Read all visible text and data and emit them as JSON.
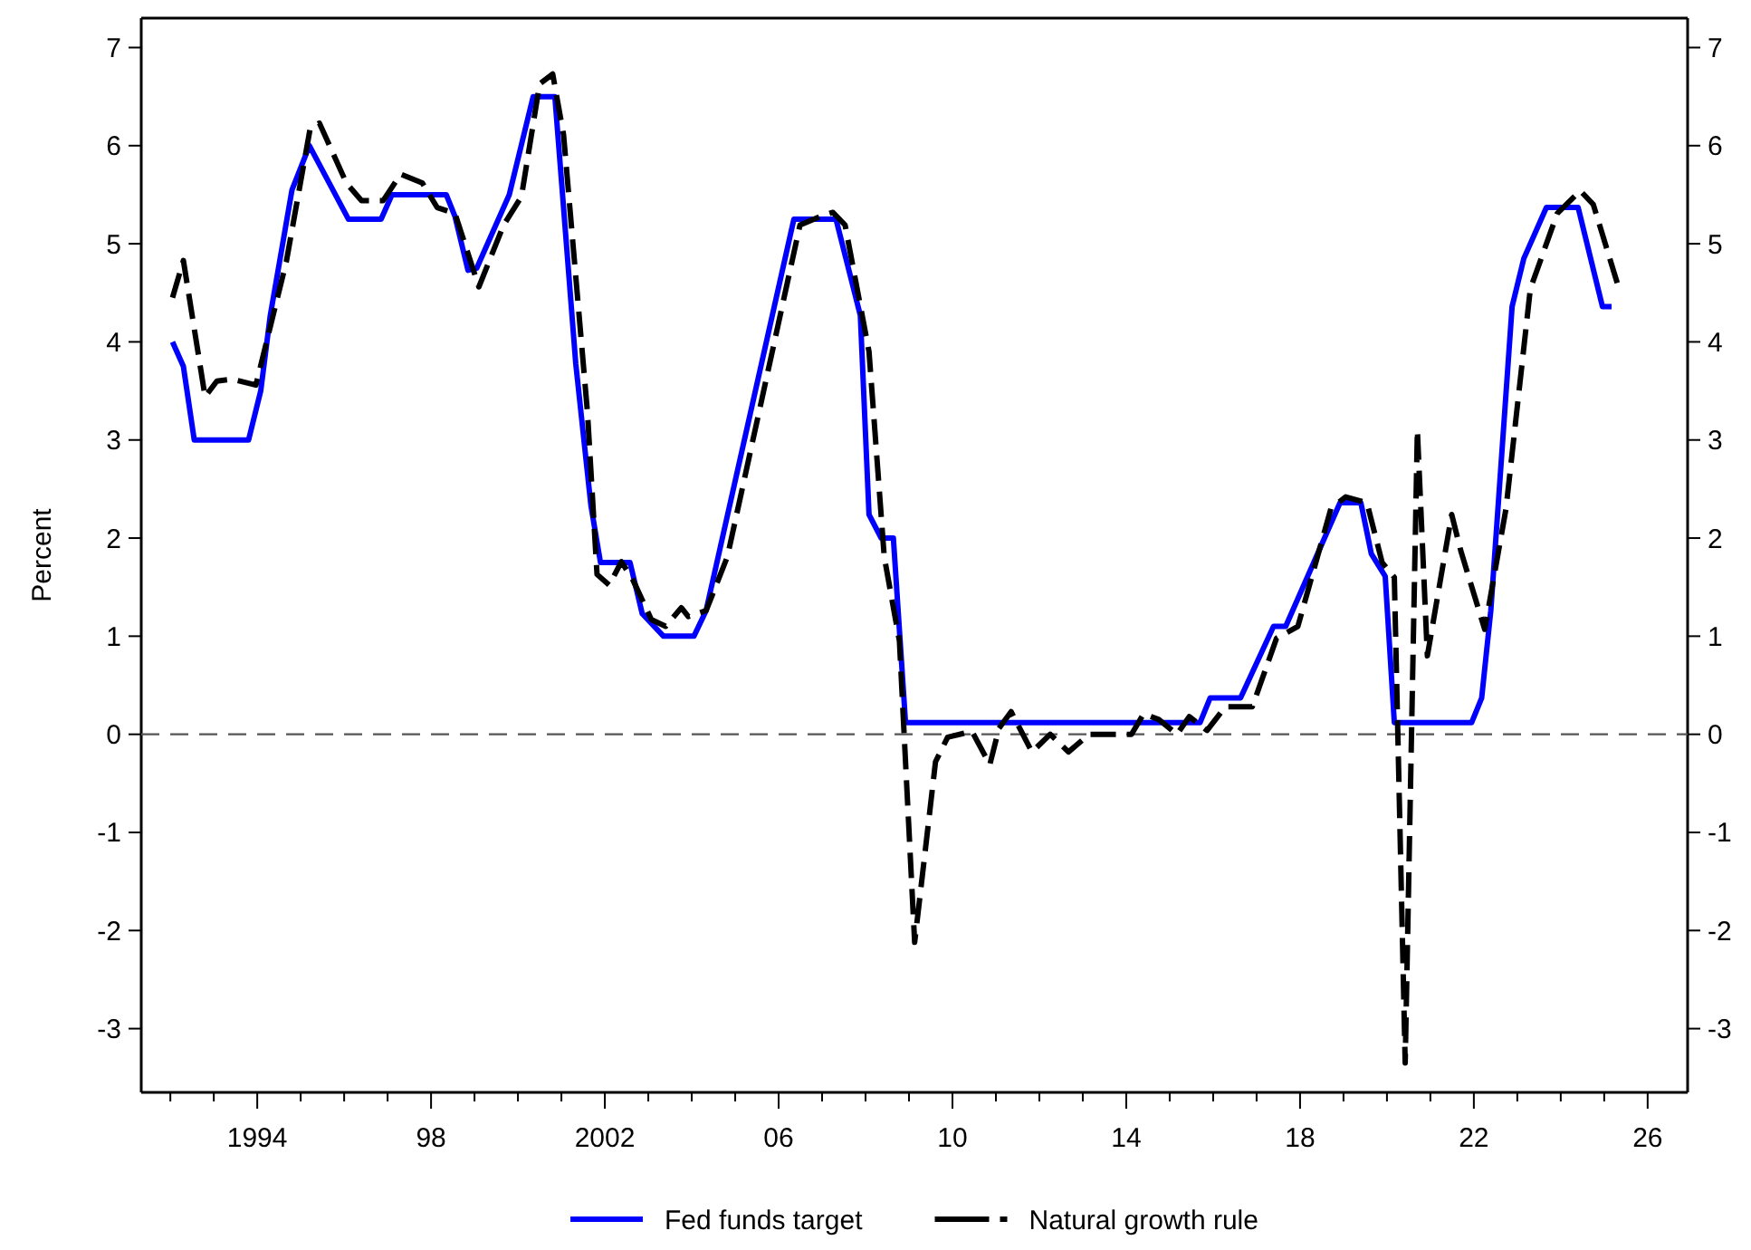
{
  "chart_data": {
    "type": "line",
    "ylabel": "Percent",
    "xlim": [
      1991.33,
      2026.92
    ],
    "ylim": [
      -3.65,
      7.3
    ],
    "y2lim": [
      -3.65,
      7.3
    ],
    "xticks": [
      {
        "value": 1992,
        "label": null
      },
      {
        "value": 1993,
        "label": null
      },
      {
        "value": 1994,
        "label": "1994"
      },
      {
        "value": 1995,
        "label": null
      },
      {
        "value": 1996,
        "label": null
      },
      {
        "value": 1997,
        "label": null
      },
      {
        "value": 1998,
        "label": "98"
      },
      {
        "value": 1999,
        "label": null
      },
      {
        "value": 2000,
        "label": null
      },
      {
        "value": 2001,
        "label": null
      },
      {
        "value": 2002,
        "label": "2002"
      },
      {
        "value": 2003,
        "label": null
      },
      {
        "value": 2004,
        "label": null
      },
      {
        "value": 2005,
        "label": null
      },
      {
        "value": 2006,
        "label": "06"
      },
      {
        "value": 2007,
        "label": null
      },
      {
        "value": 2008,
        "label": null
      },
      {
        "value": 2009,
        "label": null
      },
      {
        "value": 2010,
        "label": "10"
      },
      {
        "value": 2011,
        "label": null
      },
      {
        "value": 2012,
        "label": null
      },
      {
        "value": 2013,
        "label": null
      },
      {
        "value": 2014,
        "label": "14"
      },
      {
        "value": 2015,
        "label": null
      },
      {
        "value": 2016,
        "label": null
      },
      {
        "value": 2017,
        "label": null
      },
      {
        "value": 2018,
        "label": "18"
      },
      {
        "value": 2019,
        "label": null
      },
      {
        "value": 2020,
        "label": null
      },
      {
        "value": 2021,
        "label": null
      },
      {
        "value": 2022,
        "label": "22"
      },
      {
        "value": 2023,
        "label": null
      },
      {
        "value": 2024,
        "label": null
      },
      {
        "value": 2025,
        "label": null
      },
      {
        "value": 2026,
        "label": "26"
      }
    ],
    "yticks": [
      -3,
      -2,
      -1,
      0,
      1,
      2,
      3,
      4,
      5,
      6,
      7
    ],
    "y2ticks": [
      -3,
      -2,
      -1,
      0,
      1,
      2,
      3,
      4,
      5,
      6,
      7
    ],
    "grid": false,
    "legend": "bottom",
    "marker": "none",
    "ref_lines": [
      {
        "axis": "y",
        "value": 0,
        "color": "#555555",
        "line_style": "dashed"
      }
    ],
    "series": [
      {
        "name": "Fed funds target",
        "color": "#0000ff",
        "line_style": "solid",
        "x": [
          1992.05,
          1992.3,
          1992.55,
          1993.8,
          1994.08,
          1994.3,
          1994.8,
          1995.2,
          1996.1,
          1996.85,
          1997.1,
          1998.35,
          1998.55,
          1998.85,
          1999.05,
          1999.8,
          2000.35,
          2000.85,
          2001.33,
          2001.68,
          2001.9,
          2002.58,
          2002.86,
          2003.35,
          2004.05,
          2004.33,
          2006.35,
          2007.32,
          2007.88,
          2008.08,
          2008.36,
          2008.64,
          2008.92,
          2015.7,
          2015.93,
          2016.63,
          2017.39,
          2017.67,
          2018.92,
          2019.4,
          2019.64,
          2019.96,
          2020.17,
          2021.95,
          2022.18,
          2022.39,
          2022.88,
          2023.15,
          2023.67,
          2024.4,
          2024.96,
          2025.17
        ],
        "values": [
          4.0,
          3.75,
          3.0,
          3.0,
          3.5,
          4.27,
          5.55,
          6.0,
          5.25,
          5.25,
          5.5,
          5.5,
          5.28,
          4.73,
          4.75,
          5.5,
          6.5,
          6.5,
          3.78,
          2.33,
          1.75,
          1.75,
          1.23,
          1.0,
          1.0,
          1.26,
          5.25,
          5.25,
          4.27,
          2.24,
          2.0,
          2.0,
          0.12,
          0.12,
          0.37,
          0.37,
          1.1,
          1.1,
          2.36,
          2.36,
          1.84,
          1.61,
          0.12,
          0.12,
          0.37,
          1.26,
          4.36,
          4.85,
          5.37,
          5.37,
          4.36,
          4.36
        ]
      },
      {
        "name": "Natural growth rule",
        "color": "#000000",
        "line_style": "dashed",
        "x": [
          1992.05,
          1992.3,
          1992.8,
          1993.07,
          1993.42,
          1993.97,
          1994.67,
          1995.22,
          1995.43,
          1996.05,
          1996.4,
          1996.9,
          1997.3,
          1997.8,
          1998.14,
          1998.55,
          1999.1,
          1999.67,
          2000.08,
          2000.5,
          2000.8,
          2001.05,
          2001.6,
          2001.82,
          2002.1,
          2002.38,
          2002.65,
          2003.07,
          2003.4,
          2003.76,
          2003.92,
          2004.33,
          2004.82,
          2006.49,
          2006.97,
          2007.25,
          2007.53,
          2008.08,
          2008.43,
          2008.78,
          2009.13,
          2009.61,
          2009.89,
          2010.45,
          2010.86,
          2011.07,
          2011.35,
          2011.83,
          2012.25,
          2012.67,
          2013.15,
          2014.12,
          2014.4,
          2014.75,
          2015.17,
          2015.45,
          2015.86,
          2016.28,
          2016.9,
          2017.46,
          2017.95,
          2018.71,
          2019.05,
          2019.54,
          2019.89,
          2020.17,
          2020.42,
          2020.7,
          2020.93,
          2021.49,
          2021.7,
          2022.25,
          2022.74,
          2023.3,
          2023.92,
          2024.45,
          2024.75,
          2025.3
        ],
        "values": [
          4.45,
          4.83,
          3.44,
          3.6,
          3.62,
          3.56,
          4.82,
          6.18,
          6.23,
          5.62,
          5.44,
          5.44,
          5.71,
          5.62,
          5.37,
          5.31,
          4.56,
          5.19,
          5.48,
          6.63,
          6.73,
          6.11,
          3.28,
          1.63,
          1.52,
          1.76,
          1.57,
          1.17,
          1.1,
          1.29,
          1.2,
          1.26,
          1.81,
          5.19,
          5.28,
          5.32,
          5.19,
          3.9,
          1.81,
          0.95,
          -2.12,
          -0.28,
          -0.03,
          0.03,
          -0.31,
          0.06,
          0.23,
          -0.18,
          0.0,
          -0.18,
          0.0,
          0.0,
          0.21,
          0.15,
          0.0,
          0.18,
          0.04,
          0.28,
          0.28,
          0.98,
          1.1,
          2.3,
          2.42,
          2.36,
          1.75,
          1.6,
          -3.35,
          3.1,
          0.8,
          2.24,
          1.87,
          1.07,
          2.3,
          4.54,
          5.31,
          5.54,
          5.4,
          4.6
        ]
      }
    ]
  }
}
